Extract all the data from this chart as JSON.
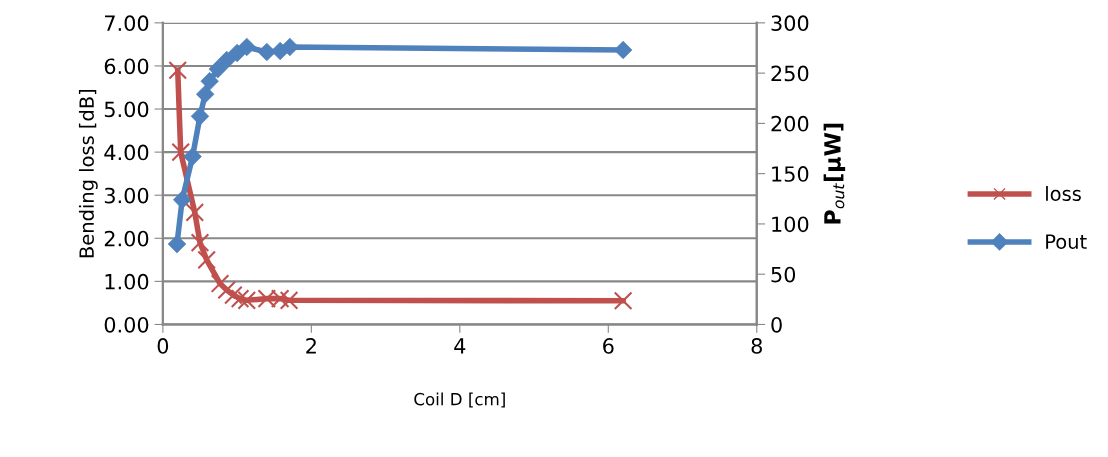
{
  "chart_data": {
    "type": "line",
    "xlabel": "Coil D [cm]",
    "ylabel": "Bending loss [dB]",
    "y2label": "P$_{out}$[µW]",
    "xlim": [
      0,
      8
    ],
    "xticks": [
      0,
      2,
      4,
      6,
      8
    ],
    "ylim": [
      0,
      7
    ],
    "yticks": [
      {
        "value": 0,
        "label": "0.00"
      },
      {
        "value": 1,
        "label": "1.00"
      },
      {
        "value": 2,
        "label": "2.00"
      },
      {
        "value": 3,
        "label": "3.00"
      },
      {
        "value": 4,
        "label": "4.00"
      },
      {
        "value": 5,
        "label": "5.00"
      },
      {
        "value": 6,
        "label": "6.00"
      },
      {
        "value": 7,
        "label": "7.00"
      }
    ],
    "y2lim": [
      0,
      300
    ],
    "y2ticks": [
      0,
      50,
      100,
      150,
      200,
      250,
      300
    ],
    "grid": "y",
    "legend": "right",
    "line_style": "solid",
    "series": [
      {
        "name": "loss",
        "color": "#c0504d",
        "marker": "cross",
        "x": [
          0.2,
          0.24,
          0.43,
          0.5,
          0.59,
          0.77,
          0.86,
          0.95,
          1.04,
          1.13,
          1.4,
          1.58,
          1.7,
          6.2
        ],
        "values": [
          5.9,
          4.0,
          2.6,
          1.9,
          1.5,
          0.95,
          0.8,
          0.68,
          0.6,
          0.56,
          0.6,
          0.6,
          0.56,
          0.55
        ]
      },
      {
        "name": "Pout",
        "color": "#4f81bd",
        "marker": "diamond",
        "axis": "y2",
        "x": [
          0.19,
          0.26,
          0.4,
          0.5,
          0.57,
          0.63,
          0.74,
          0.86,
          1.0,
          1.13,
          1.4,
          1.58,
          1.71,
          6.2
        ],
        "values": [
          80,
          124,
          167,
          207,
          229,
          242,
          254,
          263,
          270,
          276,
          271,
          272,
          276,
          273
        ]
      }
    ]
  }
}
